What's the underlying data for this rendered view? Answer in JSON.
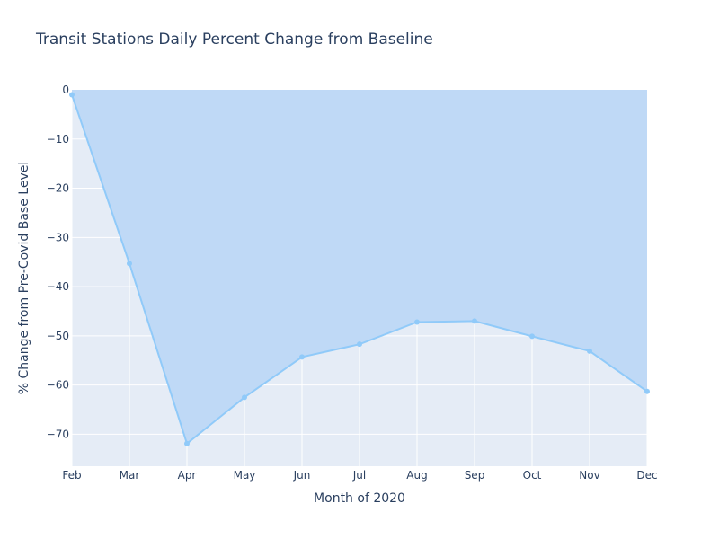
{
  "chart_data": {
    "type": "area",
    "title": "Transit Stations Daily Percent Change from Baseline",
    "xlabel": "Month of 2020",
    "ylabel": "% Change from Pre-Covid Base Level",
    "categories": [
      "Feb",
      "Mar",
      "Apr",
      "May",
      "Jun",
      "Jul",
      "Aug",
      "Sep",
      "Oct",
      "Nov",
      "Dec"
    ],
    "values": [
      -1.0,
      -35.3,
      -71.9,
      -62.5,
      -54.3,
      -51.7,
      -47.2,
      -47.0,
      -50.1,
      -53.1,
      -61.3
    ],
    "fill_to": "top",
    "ylim": [
      -76.5,
      0
    ],
    "yticks": [
      0,
      -10,
      -20,
      -30,
      -40,
      -50,
      -60,
      -70
    ],
    "grid": true,
    "colors": {
      "line": "#90caf9",
      "fill": "#bfd9f6",
      "plot_bg": "#e5ecf6",
      "grid": "#ffffff",
      "text": "#2a3f5f"
    }
  }
}
